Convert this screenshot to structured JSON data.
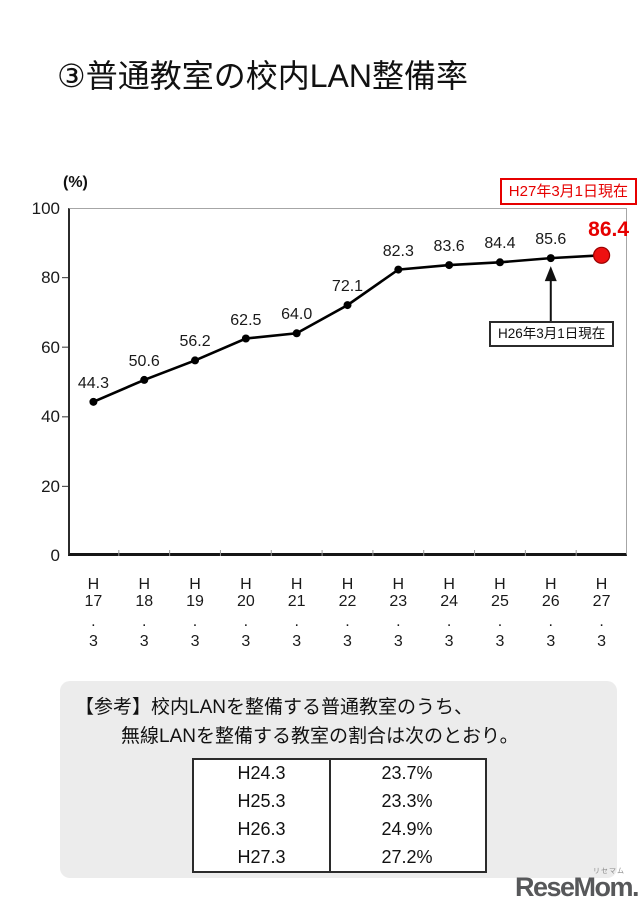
{
  "page": {
    "title": "③普通教室の校内LAN整備率"
  },
  "chart": {
    "unit_label": "(%)",
    "current_badge": "H27年3月1日現在",
    "annotation_label": "H26年3月1日現在",
    "y_ticks": [
      "100",
      "80",
      "60",
      "40",
      "20",
      "0"
    ]
  },
  "chart_data": {
    "type": "line",
    "title": "普通教室の校内LAN整備率",
    "categories": [
      "H17.3",
      "H18.3",
      "H19.3",
      "H20.3",
      "H21.3",
      "H22.3",
      "H23.3",
      "H24.3",
      "H25.3",
      "H26.3",
      "H27.3"
    ],
    "values": [
      44.3,
      50.6,
      56.2,
      62.5,
      64.0,
      72.1,
      82.3,
      83.6,
      84.4,
      85.6,
      86.4
    ],
    "xlabel": "",
    "ylabel": "(%)",
    "ylim": [
      0,
      100
    ],
    "y_tick_step": 20,
    "grid": false,
    "legend": "none",
    "highlight_last_point": true,
    "annotations": [
      {
        "text": "H27年3月1日現在",
        "type": "badge",
        "position": "top-right"
      },
      {
        "text": "H26年3月1日現在",
        "type": "callout-arrow",
        "target_category": "H26.3",
        "target_value": 85.6
      }
    ]
  },
  "reference": {
    "line1": "【参考】校内LANを整備する普通教室のうち、",
    "line2": "無線LANを整備する教室の割合は次のとおり。",
    "table": {
      "rows": [
        {
          "period": "H24.3",
          "value": "23.7%"
        },
        {
          "period": "H25.3",
          "value": "23.3%"
        },
        {
          "period": "H26.3",
          "value": "24.9%"
        },
        {
          "period": "H27.3",
          "value": "27.2%"
        }
      ]
    }
  },
  "logo": {
    "text": "ReseMom.",
    "ruby": "リセマム"
  },
  "colors": {
    "accent_red": "#e60000",
    "point_red_fill": "#ee1111",
    "point_red_edge": "#990000",
    "line_black": "#000000",
    "note_bg": "#ececec",
    "logo_gray": "#57585a"
  }
}
